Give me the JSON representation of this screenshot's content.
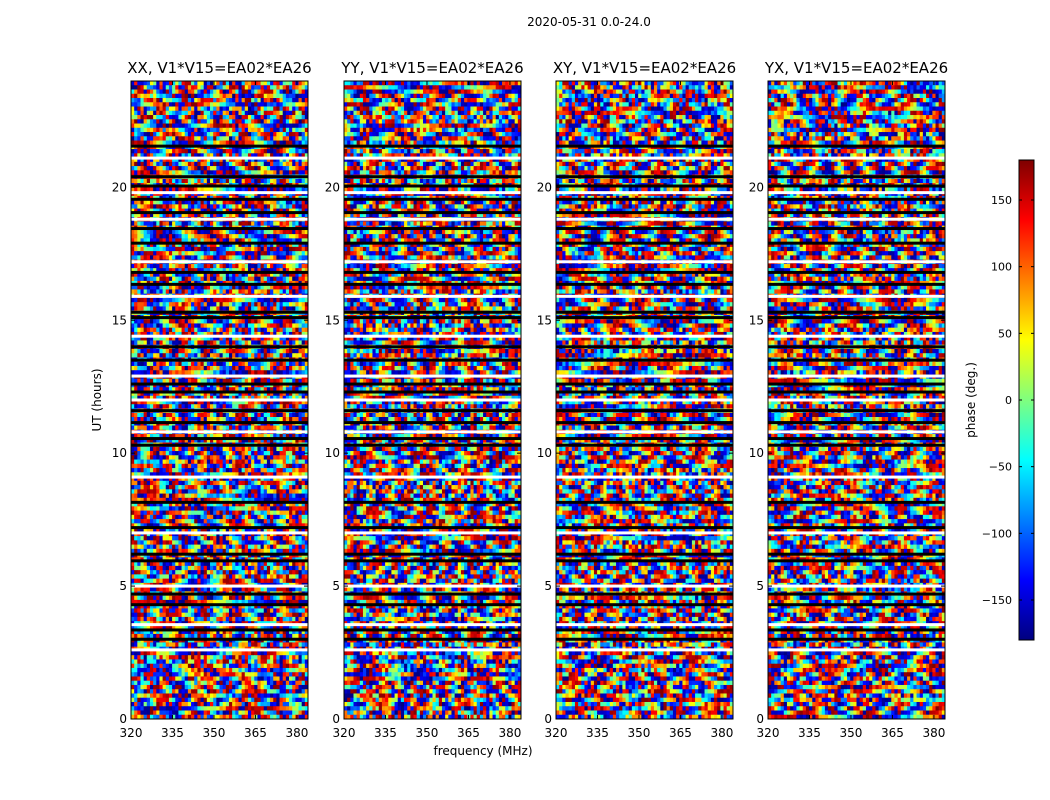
{
  "suptitle": "2020-05-31 0.0-24.0",
  "xlabel": "frequency (MHz)",
  "ylabel": "UT (hours)",
  "colorbar": {
    "label": "phase (deg.)",
    "range": [
      -180,
      180
    ],
    "ticks": [
      150,
      100,
      50,
      0,
      -50,
      -100,
      -150
    ],
    "tick_labels": [
      "150",
      "100",
      "50",
      "0",
      "−50",
      "−100",
      "−150"
    ],
    "colormap": "jet",
    "colors": [
      "#00007f",
      "#0000ff",
      "#007fff",
      "#00ffff",
      "#7fff7f",
      "#ffff00",
      "#ff7f00",
      "#ff0000",
      "#7f0000"
    ]
  },
  "chart_data": {
    "type": "heatmap",
    "xlim": [
      320,
      384
    ],
    "ylim": [
      0,
      24
    ],
    "x_ticks": [
      320,
      335,
      350,
      365,
      380
    ],
    "x_tick_labels": [
      "320",
      "335",
      "350",
      "365",
      "380"
    ],
    "y_ticks": [
      0,
      5,
      10,
      15,
      20
    ],
    "y_tick_labels": [
      "0",
      "5",
      "10",
      "15",
      "20"
    ],
    "flagged_hours": [
      2.6,
      3.0,
      3.35,
      3.55,
      4.3,
      4.7,
      5.0,
      5.95,
      6.2,
      7.0,
      7.2,
      8.15,
      9.1,
      10.3,
      10.55,
      10.8,
      11.15,
      11.6,
      12.0,
      12.3,
      12.6,
      12.9,
      13.5,
      14.0,
      14.4,
      15.1,
      15.3,
      15.9,
      16.35,
      16.8,
      17.2,
      17.9,
      18.45,
      18.8,
      19.05,
      19.55,
      19.8,
      20.05,
      20.4,
      21.1,
      21.55
    ],
    "panels": [
      {
        "title": "XX, V1*V15=EA02*EA26",
        "seed": 11
      },
      {
        "title": "YY, V1*V15=EA02*EA26",
        "seed": 23
      },
      {
        "title": "XY, V1*V15=EA02*EA26",
        "seed": 37
      },
      {
        "title": "YX, V1*V15=EA02*EA26",
        "seed": 53
      }
    ]
  }
}
